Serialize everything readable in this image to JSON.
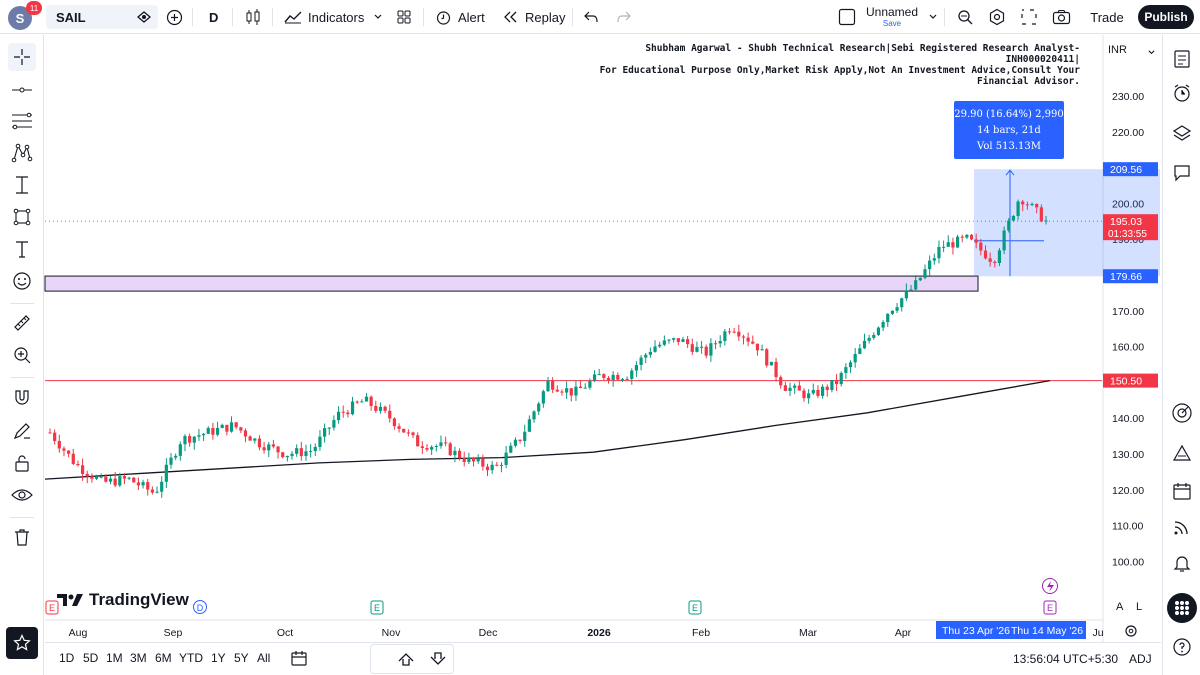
{
  "toolbar": {
    "avatar_letter": "S",
    "notification_count": "11",
    "symbol": "SAIL",
    "interval": "D",
    "indicators_label": "Indicators",
    "alert_label": "Alert",
    "replay_label": "Replay",
    "layout_name": "Unnamed",
    "layout_status": "Save",
    "trade_label": "Trade",
    "publish_label": "Publish"
  },
  "chart": {
    "annotation_line1": "Shubham Agarwal - Shubh Technical Research|Sebi Registered Research Analyst-INH000020411|",
    "annotation_line2": "For Educational Purpose Only,Market Risk Apply,Not An Investment Advice,Consult Your Financial Advisor.",
    "currency": "INR",
    "measure_line1": "29.90 (16.64%) 2,990",
    "measure_line2": "14 bars, 21d",
    "measure_line3": "Vol 513.13M",
    "price_ticks": [
      "230.00",
      "220.00",
      "210.00",
      "200.00",
      "190.00",
      "180.00",
      "170.00",
      "160.00",
      "150.00",
      "140.00",
      "130.00",
      "120.00",
      "110.00",
      "100.00"
    ],
    "price_tag_upper": "209.56",
    "price_tag_last": "195.03",
    "price_tag_countdown": "01:33:55",
    "price_tag_lower": "179.66",
    "price_tag_level": "150.50",
    "time_ticks": [
      "Aug",
      "Sep",
      "Oct",
      "Nov",
      "Dec",
      "2026",
      "Feb",
      "Mar",
      "Apr",
      "Ju"
    ],
    "time_tag_start": "Thu 23 Apr '26",
    "time_tag_end": "Thu 14 May '26",
    "brand": "TradingView",
    "scale_a": "A",
    "scale_l": "L",
    "colors": {
      "up": "#089981",
      "down": "#f23645",
      "accent": "#2962ff",
      "zone": "#e9d5f7",
      "level": "#f23645"
    }
  },
  "bottom": {
    "timeframes": [
      "1D",
      "5D",
      "1M",
      "3M",
      "6M",
      "YTD",
      "1Y",
      "5Y",
      "All"
    ],
    "clock": "13:56:04 UTC+5:30",
    "adj_label": "ADJ"
  },
  "chart_data": {
    "type": "candlestick",
    "symbol": "SAIL",
    "interval": "D",
    "ylim": [
      95,
      235
    ],
    "yticks": [
      100,
      110,
      120,
      130,
      140,
      150,
      160,
      170,
      180,
      190,
      200,
      210,
      220,
      230
    ],
    "x_ticks": [
      "Aug",
      "Sep",
      "Oct",
      "Nov",
      "Dec",
      "2026",
      "Feb",
      "Mar",
      "Apr",
      "Ju"
    ],
    "last_price": 195.03,
    "horizontal_level": 150.5,
    "zone": [
      175.5,
      179.7
    ],
    "measure_range": [
      179.66,
      209.56
    ],
    "measure_change": "29.90 (16.64%)",
    "moving_average_approx": [
      123,
      124.5,
      126,
      127.5,
      128.5,
      129,
      130.5,
      134,
      138,
      141.5,
      146,
      150.5
    ],
    "close_approx_path": [
      136,
      127,
      122,
      123,
      119,
      134,
      136,
      138,
      133,
      130,
      131,
      141,
      145,
      140,
      133,
      132,
      128,
      126,
      135,
      150,
      147,
      152,
      152,
      160,
      162,
      158,
      166,
      160,
      149,
      146,
      150,
      160,
      170,
      177,
      188,
      190,
      184,
      202,
      195
    ]
  }
}
